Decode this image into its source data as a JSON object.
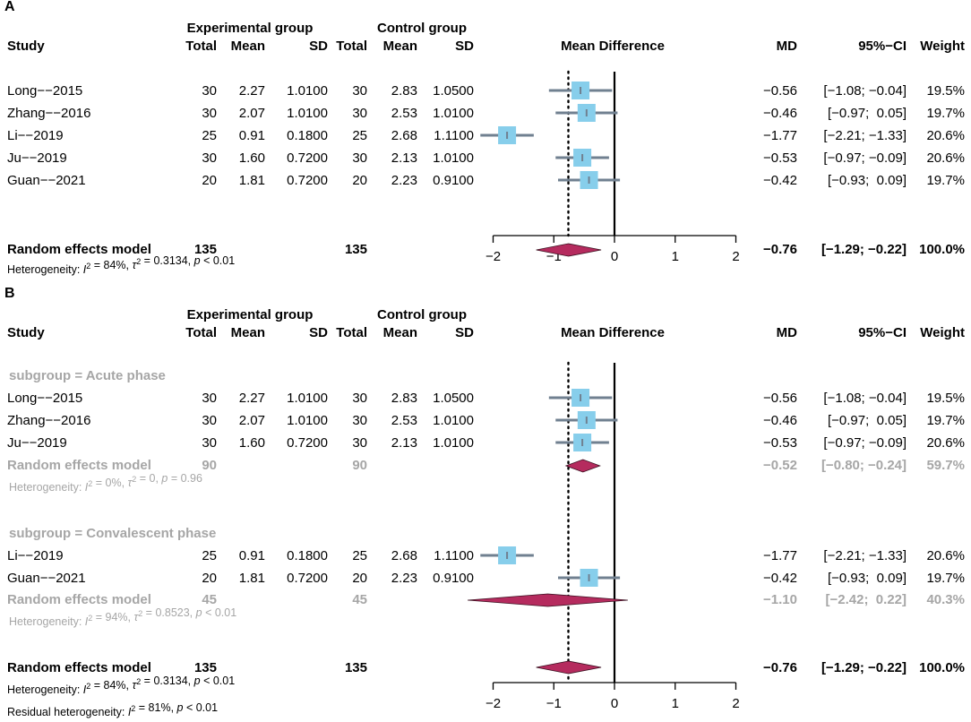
{
  "colors": {
    "square": "#87CEEB",
    "ci_line": "#708090",
    "diamond": "#B52B5E",
    "gray_text": "#A6A6A6",
    "black": "#000000"
  },
  "headers": {
    "experimental_group": "Experimental group",
    "control_group": "Control group",
    "study": "Study",
    "total": "Total",
    "mean": "Mean",
    "sd": "SD",
    "mean_difference": "Mean Difference",
    "md": "MD",
    "ci": "95%−CI",
    "weight": "Weight"
  },
  "chart_data": [
    {
      "type": "forest",
      "panel_label": "A",
      "xlim": [
        -2,
        2
      ],
      "xticks": [
        -2,
        -1,
        0,
        1,
        2
      ],
      "xtick_labels": [
        "−2",
        "−1",
        "0",
        "1",
        "2"
      ],
      "reference_line": -0.76,
      "studies": [
        {
          "name": "Long−−2015",
          "e_total": "30",
          "e_mean": "2.27",
          "e_sd": "1.0100",
          "c_total": "30",
          "c_mean": "2.83",
          "c_sd": "1.0500",
          "md": -0.56,
          "lo": -1.08,
          "hi": -0.04,
          "md_text": "−0.56",
          "ci_text": "[−1.08; −0.04]",
          "weight_text": "19.5%"
        },
        {
          "name": "Zhang−−2016",
          "e_total": "30",
          "e_mean": "2.07",
          "e_sd": "1.0100",
          "c_total": "30",
          "c_mean": "2.53",
          "c_sd": "1.0100",
          "md": -0.46,
          "lo": -0.97,
          "hi": 0.05,
          "md_text": "−0.46",
          "ci_text": "[−0.97;  0.05]",
          "weight_text": "19.7%"
        },
        {
          "name": "Li−−2019",
          "e_total": "25",
          "e_mean": "0.91",
          "e_sd": "0.1800",
          "c_total": "25",
          "c_mean": "2.68",
          "c_sd": "1.1100",
          "md": -1.77,
          "lo": -2.21,
          "hi": -1.33,
          "md_text": "−1.77",
          "ci_text": "[−2.21; −1.33]",
          "weight_text": "20.6%"
        },
        {
          "name": "Ju−−2019",
          "e_total": "30",
          "e_mean": "1.60",
          "e_sd": "0.7200",
          "c_total": "30",
          "c_mean": "2.13",
          "c_sd": "1.0100",
          "md": -0.53,
          "lo": -0.97,
          "hi": -0.09,
          "md_text": "−0.53",
          "ci_text": "[−0.97; −0.09]",
          "weight_text": "20.6%"
        },
        {
          "name": "Guan−−2021",
          "e_total": "20",
          "e_mean": "1.81",
          "e_sd": "0.7200",
          "c_total": "20",
          "c_mean": "2.23",
          "c_sd": "0.9100",
          "md": -0.42,
          "lo": -0.93,
          "hi": 0.09,
          "md_text": "−0.42",
          "ci_text": "[−0.93;  0.09]",
          "weight_text": "19.7%"
        }
      ],
      "overall": {
        "name": "Random effects model",
        "e_total": "135",
        "c_total": "135",
        "md": -0.76,
        "lo": -1.29,
        "hi": -0.22,
        "md_text": "−0.76",
        "ci_text": "[−1.29; −0.22]",
        "weight_text": "100.0%"
      },
      "heterogeneity": {
        "prefix": "Heterogeneity: ",
        "i2_label": "I",
        "i2_value": " = 84%, ",
        "tau_label": "τ",
        "tau_value": " = 0.3134, ",
        "p_label": "p",
        "p_value": " < 0.01"
      }
    },
    {
      "type": "forest",
      "panel_label": "B",
      "xlim": [
        -2,
        2
      ],
      "xticks": [
        -2,
        -1,
        0,
        1,
        2
      ],
      "xtick_labels": [
        "−2",
        "−1",
        "0",
        "1",
        "2"
      ],
      "reference_line": -0.76,
      "subgroups": [
        {
          "label": "subgroup = Acute phase",
          "studies": [
            {
              "name": "Long−−2015",
              "e_total": "30",
              "e_mean": "2.27",
              "e_sd": "1.0100",
              "c_total": "30",
              "c_mean": "2.83",
              "c_sd": "1.0500",
              "md": -0.56,
              "lo": -1.08,
              "hi": -0.04,
              "md_text": "−0.56",
              "ci_text": "[−1.08; −0.04]",
              "weight_text": "19.5%"
            },
            {
              "name": "Zhang−−2016",
              "e_total": "30",
              "e_mean": "2.07",
              "e_sd": "1.0100",
              "c_total": "30",
              "c_mean": "2.53",
              "c_sd": "1.0100",
              "md": -0.46,
              "lo": -0.97,
              "hi": 0.05,
              "md_text": "−0.46",
              "ci_text": "[−0.97;  0.05]",
              "weight_text": "19.7%"
            },
            {
              "name": "Ju−−2019",
              "e_total": "30",
              "e_mean": "1.60",
              "e_sd": "0.7200",
              "c_total": "30",
              "c_mean": "2.13",
              "c_sd": "1.0100",
              "md": -0.53,
              "lo": -0.97,
              "hi": -0.09,
              "md_text": "−0.53",
              "ci_text": "[−0.97; −0.09]",
              "weight_text": "20.6%"
            }
          ],
          "model": {
            "name": "Random effects model",
            "e_total": "90",
            "c_total": "90",
            "md": -0.52,
            "lo": -0.8,
            "hi": -0.24,
            "md_text": "−0.52",
            "ci_text": "[−0.80; −0.24]",
            "weight_text": "59.7%"
          },
          "heterogeneity": {
            "prefix": "Heterogeneity: ",
            "i2_label": "I",
            "i2_value": " = 0%, ",
            "tau_label": "τ",
            "tau_value": " = 0, ",
            "p_label": "p",
            "p_value": " = 0.96"
          }
        },
        {
          "label": "subgroup = Convalescent phase",
          "studies": [
            {
              "name": "Li−−2019",
              "e_total": "25",
              "e_mean": "0.91",
              "e_sd": "0.1800",
              "c_total": "25",
              "c_mean": "2.68",
              "c_sd": "1.1100",
              "md": -1.77,
              "lo": -2.21,
              "hi": -1.33,
              "md_text": "−1.77",
              "ci_text": "[−2.21; −1.33]",
              "weight_text": "20.6%"
            },
            {
              "name": "Guan−−2021",
              "e_total": "20",
              "e_mean": "1.81",
              "e_sd": "0.7200",
              "c_total": "20",
              "c_mean": "2.23",
              "c_sd": "0.9100",
              "md": -0.42,
              "lo": -0.93,
              "hi": 0.09,
              "md_text": "−0.42",
              "ci_text": "[−0.93;  0.09]",
              "weight_text": "19.7%"
            }
          ],
          "model": {
            "name": "Random effects model",
            "e_total": "45",
            "c_total": "45",
            "md": -1.1,
            "lo": -2.42,
            "hi": 0.22,
            "md_text": "−1.10",
            "ci_text": "[−2.42;  0.22]",
            "weight_text": "40.3%"
          },
          "heterogeneity": {
            "prefix": "Heterogeneity: ",
            "i2_label": "I",
            "i2_value": " = 94%, ",
            "tau_label": "τ",
            "tau_value": " = 0.8523, ",
            "p_label": "p",
            "p_value": " < 0.01"
          }
        }
      ],
      "overall": {
        "name": "Random effects model",
        "e_total": "135",
        "c_total": "135",
        "md": -0.76,
        "lo": -1.29,
        "hi": -0.22,
        "md_text": "−0.76",
        "ci_text": "[−1.29; −0.22]",
        "weight_text": "100.0%"
      },
      "heterogeneity": {
        "prefix": "Heterogeneity: ",
        "i2_label": "I",
        "i2_value": " = 84%, ",
        "tau_label": "τ",
        "tau_value": " = 0.3134, ",
        "p_label": "p",
        "p_value": " < 0.01"
      },
      "residual_heterogeneity": {
        "prefix": "Residual heterogeneity: ",
        "i2_label": "I",
        "i2_value": " = 81%, ",
        "p_label": "p",
        "p_value": " < 0.01"
      }
    }
  ]
}
